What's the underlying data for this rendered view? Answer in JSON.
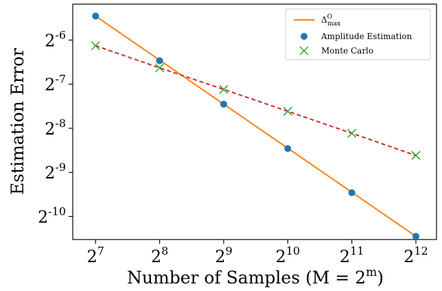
{
  "chart_data": {
    "type": "line",
    "xlabel": "Number of Samples (M = 2",
    "xlabel_exp": "m",
    "xlabel_close": ")",
    "ylabel": "Estimation Error",
    "x_scale": "log2",
    "y_scale": "log2",
    "x_tick_base": "2",
    "y_tick_base": "2",
    "x_tick_exponents": [
      "7",
      "8",
      "9",
      "10",
      "11",
      "12"
    ],
    "y_tick_exponents": [
      "-6",
      "-7",
      "-8",
      "-9",
      "-10"
    ],
    "xlim": [
      100,
      5120
    ],
    "ylim": [
      0.00068,
      0.0275
    ],
    "grid": false,
    "legend_position": "top-right",
    "series": [
      {
        "name": "Δ",
        "name_sup": "O",
        "name_sub": "max",
        "style": "solid-line",
        "color": "#ff7f0e",
        "x": [
          128,
          4096
        ],
        "y": [
          0.0228,
          0.000715
        ]
      },
      {
        "name": "Amplitude Estimation",
        "style": "dot",
        "color": "#1f77b4",
        "x": [
          128,
          256,
          512,
          1024,
          2048,
          4096
        ],
        "y": [
          0.0228,
          0.0113,
          0.0057,
          0.00284,
          0.00142,
          0.000715
        ]
      },
      {
        "name": "Monte Carlo",
        "style": "x-marker-dashed",
        "color": "#2ca02c",
        "line_color": "#d62728",
        "x": [
          128,
          256,
          512,
          1024,
          2048,
          4096
        ],
        "y": [
          0.0143,
          0.0101,
          0.0072,
          0.0051,
          0.00361,
          0.00255
        ]
      }
    ]
  }
}
